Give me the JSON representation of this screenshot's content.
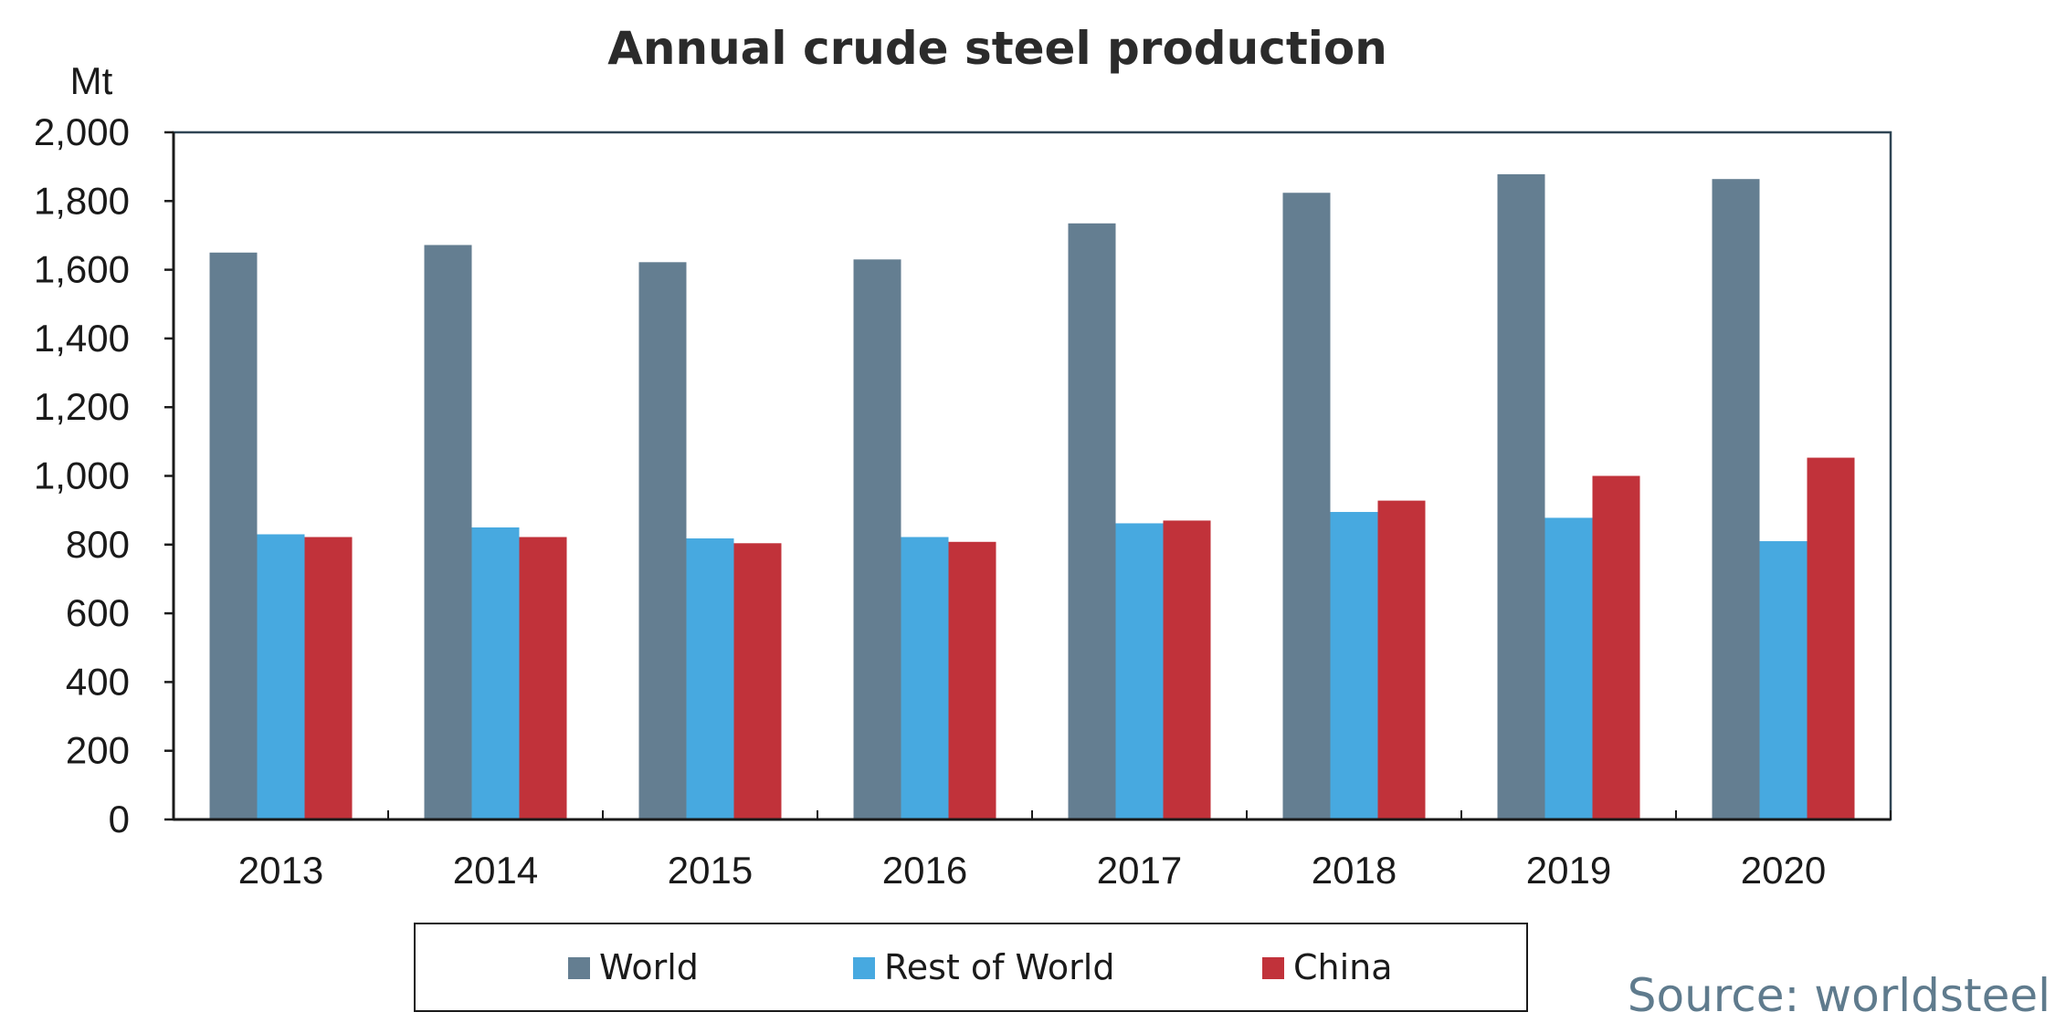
{
  "chart_data": {
    "type": "bar",
    "title": "Annual crude steel production",
    "ylabel": "Mt",
    "xlabel": "",
    "ylim": [
      0,
      2000
    ],
    "yticks": [
      0,
      200,
      400,
      600,
      800,
      1000,
      1200,
      1400,
      1600,
      1800,
      2000
    ],
    "ytick_labels": [
      "0",
      "200",
      "400",
      "600",
      "800",
      "1,000",
      "1,200",
      "1,400",
      "1,600",
      "1,800",
      "2,000"
    ],
    "categories": [
      "2013",
      "2014",
      "2015",
      "2016",
      "2017",
      "2018",
      "2019",
      "2020"
    ],
    "series": [
      {
        "name": "World",
        "color": "#647e91",
        "values": [
          1650,
          1672,
          1622,
          1630,
          1735,
          1824,
          1878,
          1864
        ]
      },
      {
        "name": "Rest of World",
        "color": "#47a9e0",
        "values": [
          830,
          850,
          818,
          822,
          862,
          895,
          878,
          810
        ]
      },
      {
        "name": "China",
        "color": "#c1323a",
        "values": [
          822,
          822,
          804,
          808,
          870,
          928,
          1000,
          1053
        ]
      }
    ],
    "grid": false,
    "legend_position": "bottom-center",
    "source": "Source: worldsteel",
    "source_color": "#5f7b8d"
  }
}
